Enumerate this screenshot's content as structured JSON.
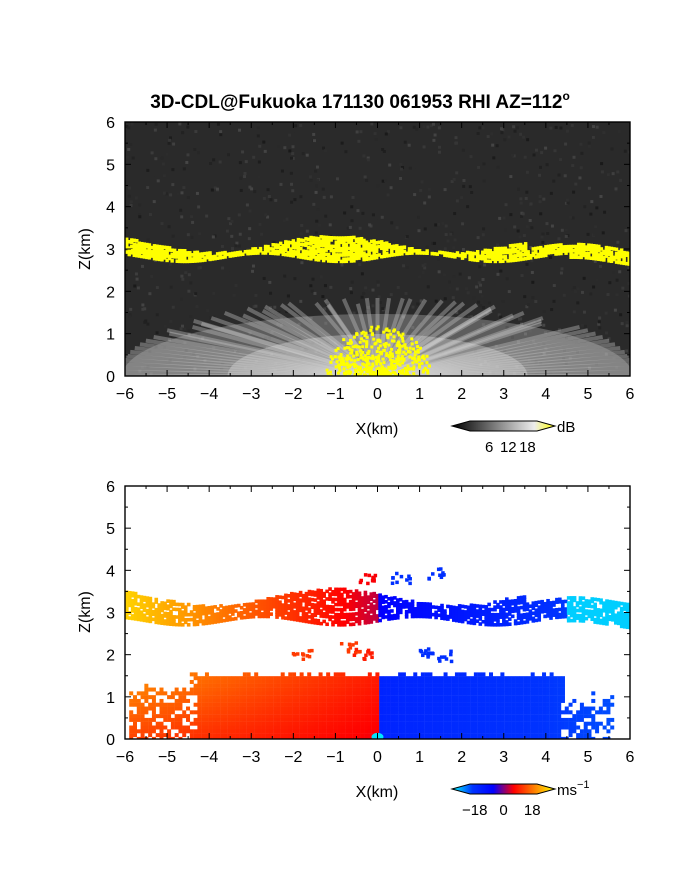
{
  "figure": {
    "title": "3D-CDL@Fukuoka 171130 061953 RHI AZ=112",
    "title_superscript": "o"
  },
  "chart_data": [
    {
      "type": "heatmap",
      "panel": "top",
      "quantity": "signal intensity",
      "xlabel": "X(km)",
      "ylabel": "Z(km)",
      "xlim": [
        -6,
        6
      ],
      "ylim": [
        0,
        6
      ],
      "xticks": [
        "−6",
        "−5",
        "−4",
        "−3",
        "−2",
        "−1",
        "0",
        "1",
        "2",
        "3",
        "4",
        "5",
        "6"
      ],
      "yticks": [
        "0",
        "1",
        "2",
        "3",
        "4",
        "5",
        "6"
      ],
      "colorbar": {
        "unit": "dB",
        "unit_superscript": "",
        "ticks": [
          "6",
          "12",
          "18"
        ],
        "range": [
          0,
          21
        ],
        "colors": [
          "#000000",
          "#3a3a3a",
          "#777777",
          "#b4b4b4",
          "#ececec",
          "#ffff00"
        ]
      },
      "layers": [
        {
          "name": "cloud layer (>18 dB)",
          "z_km_range": [
            2.7,
            3.6
          ],
          "x_km_range": [
            -6,
            6
          ],
          "color": "#ffff00"
        },
        {
          "name": "near-ground echo (>18 dB)",
          "z_km_range": [
            0,
            1.2
          ],
          "x_km_range": [
            -1.2,
            1.2
          ],
          "color": "#ffff00"
        },
        {
          "name": "boundary layer return",
          "z_km_range": [
            0,
            1.6
          ],
          "x_km_range": [
            -6,
            6
          ],
          "color": "#cccccc"
        }
      ],
      "background": "noise, grey"
    },
    {
      "type": "heatmap",
      "panel": "bottom",
      "quantity": "Doppler velocity",
      "xlabel": "X(km)",
      "ylabel": "Z(km)",
      "xlim": [
        -6,
        6
      ],
      "ylim": [
        0,
        6
      ],
      "xticks": [
        "−6",
        "−5",
        "−4",
        "−3",
        "−2",
        "−1",
        "0",
        "1",
        "2",
        "3",
        "4",
        "5",
        "6"
      ],
      "yticks": [
        "0",
        "1",
        "2",
        "3",
        "4",
        "5",
        "6"
      ],
      "colorbar": {
        "unit": "ms",
        "unit_superscript": "−1",
        "ticks": [
          "−18",
          "0",
          "18"
        ],
        "range": [
          -21,
          21
        ],
        "colors": [
          "#00ffff",
          "#0033ff",
          "#0000ff",
          "#ff0000",
          "#ff8000",
          "#ffff00"
        ]
      },
      "layers": [
        {
          "name": "cloud layer velocity",
          "z_km_range": [
            2.7,
            3.6
          ],
          "x_km_range": [
            -6,
            6
          ],
          "velocity_ms": [
            18,
            -15
          ]
        },
        {
          "name": "boundary layer velocity",
          "z_km_range": [
            0,
            1.6
          ],
          "x_km_range": [
            -6,
            5.5
          ],
          "velocity_ms": [
            12,
            -12
          ]
        }
      ],
      "background": "white (no data)"
    }
  ]
}
